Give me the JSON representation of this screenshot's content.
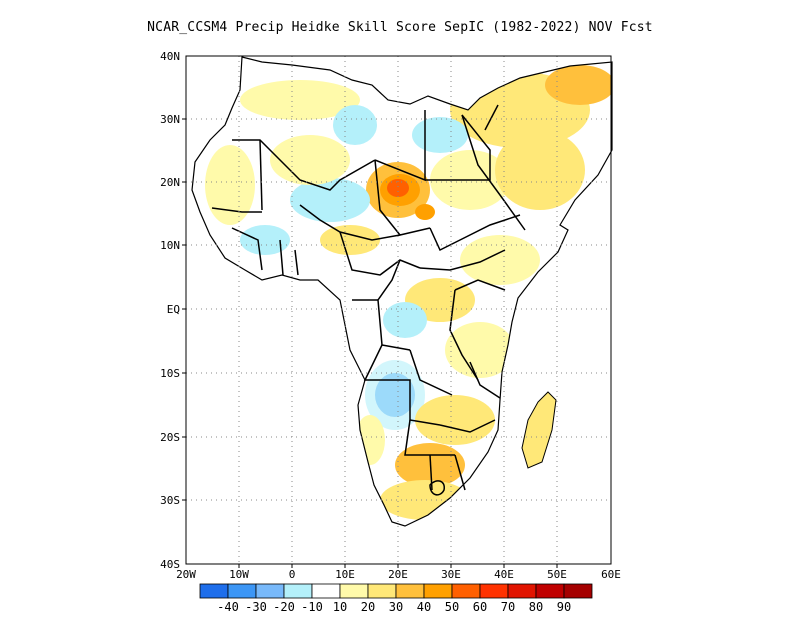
{
  "title": "NCAR_CCSM4 Precip Heidke Skill Score SepIC (1982-2022) NOV Fcst",
  "map": {
    "lon_range": [
      -20,
      60
    ],
    "lat_range": [
      -40,
      40
    ],
    "lon_ticks": [
      "20W",
      "10W",
      "0",
      "10E",
      "20E",
      "30E",
      "40E",
      "50E",
      "60E"
    ],
    "lat_ticks": [
      "40N",
      "30N",
      "20N",
      "10N",
      "EQ",
      "10S",
      "20S",
      "30S",
      "40S"
    ],
    "gridlines": "dotted"
  },
  "colorbar": {
    "labels": [
      "-40",
      "-30",
      "-20",
      "-10",
      "10",
      "20",
      "30",
      "40",
      "50",
      "60",
      "70",
      "80",
      "90"
    ],
    "colors": [
      "#1e6eeb",
      "#3c96f5",
      "#78b9fa",
      "#b4f0fa",
      "#ffffff",
      "#fffaaa",
      "#ffe878",
      "#ffc03c",
      "#ffa000",
      "#ff6000",
      "#ff3200",
      "#e11400",
      "#c00000",
      "#a50000"
    ]
  }
}
